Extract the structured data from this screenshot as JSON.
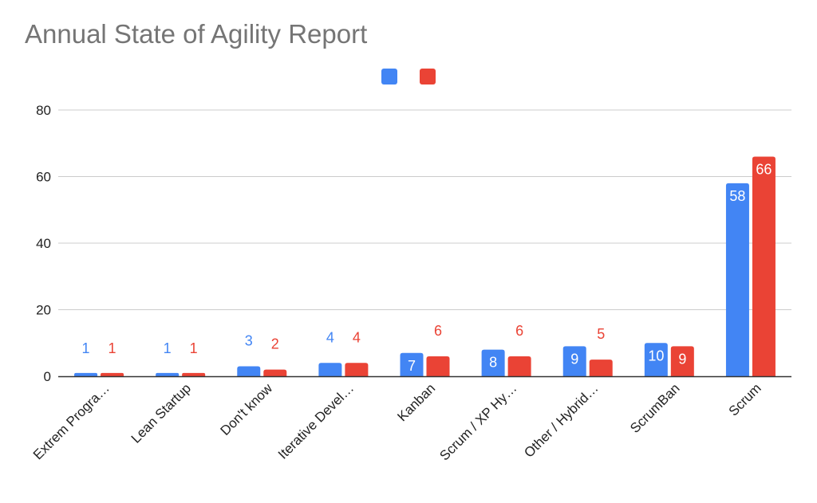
{
  "title": "Annual State of Agility Report",
  "colors": {
    "series1": "#4285f4",
    "series2": "#ea4335",
    "grid": "#cccccc",
    "axis": "#333333",
    "text": "#222222"
  },
  "chart_data": {
    "type": "bar",
    "title": "Annual State of Agility Report",
    "xlabel": "",
    "ylabel": "",
    "ylim": [
      0,
      80
    ],
    "yticks": [
      "0",
      "20",
      "40",
      "60",
      "80"
    ],
    "grid": true,
    "legend": "top-center",
    "categories": [
      "Extrem Progra…",
      "Lean Startup",
      "Don't know",
      "Iterative Devel…",
      "Kanban",
      "Scrum / XP Hy…",
      "Other / Hybrid…",
      "ScrumBan",
      "Scrum"
    ],
    "series": [
      {
        "color": "#4285f4",
        "values": [
          1,
          1,
          3,
          4,
          7,
          8,
          9,
          10,
          58
        ]
      },
      {
        "color": "#ea4335",
        "values": [
          1,
          1,
          2,
          4,
          6,
          6,
          5,
          9,
          66
        ]
      }
    ]
  }
}
